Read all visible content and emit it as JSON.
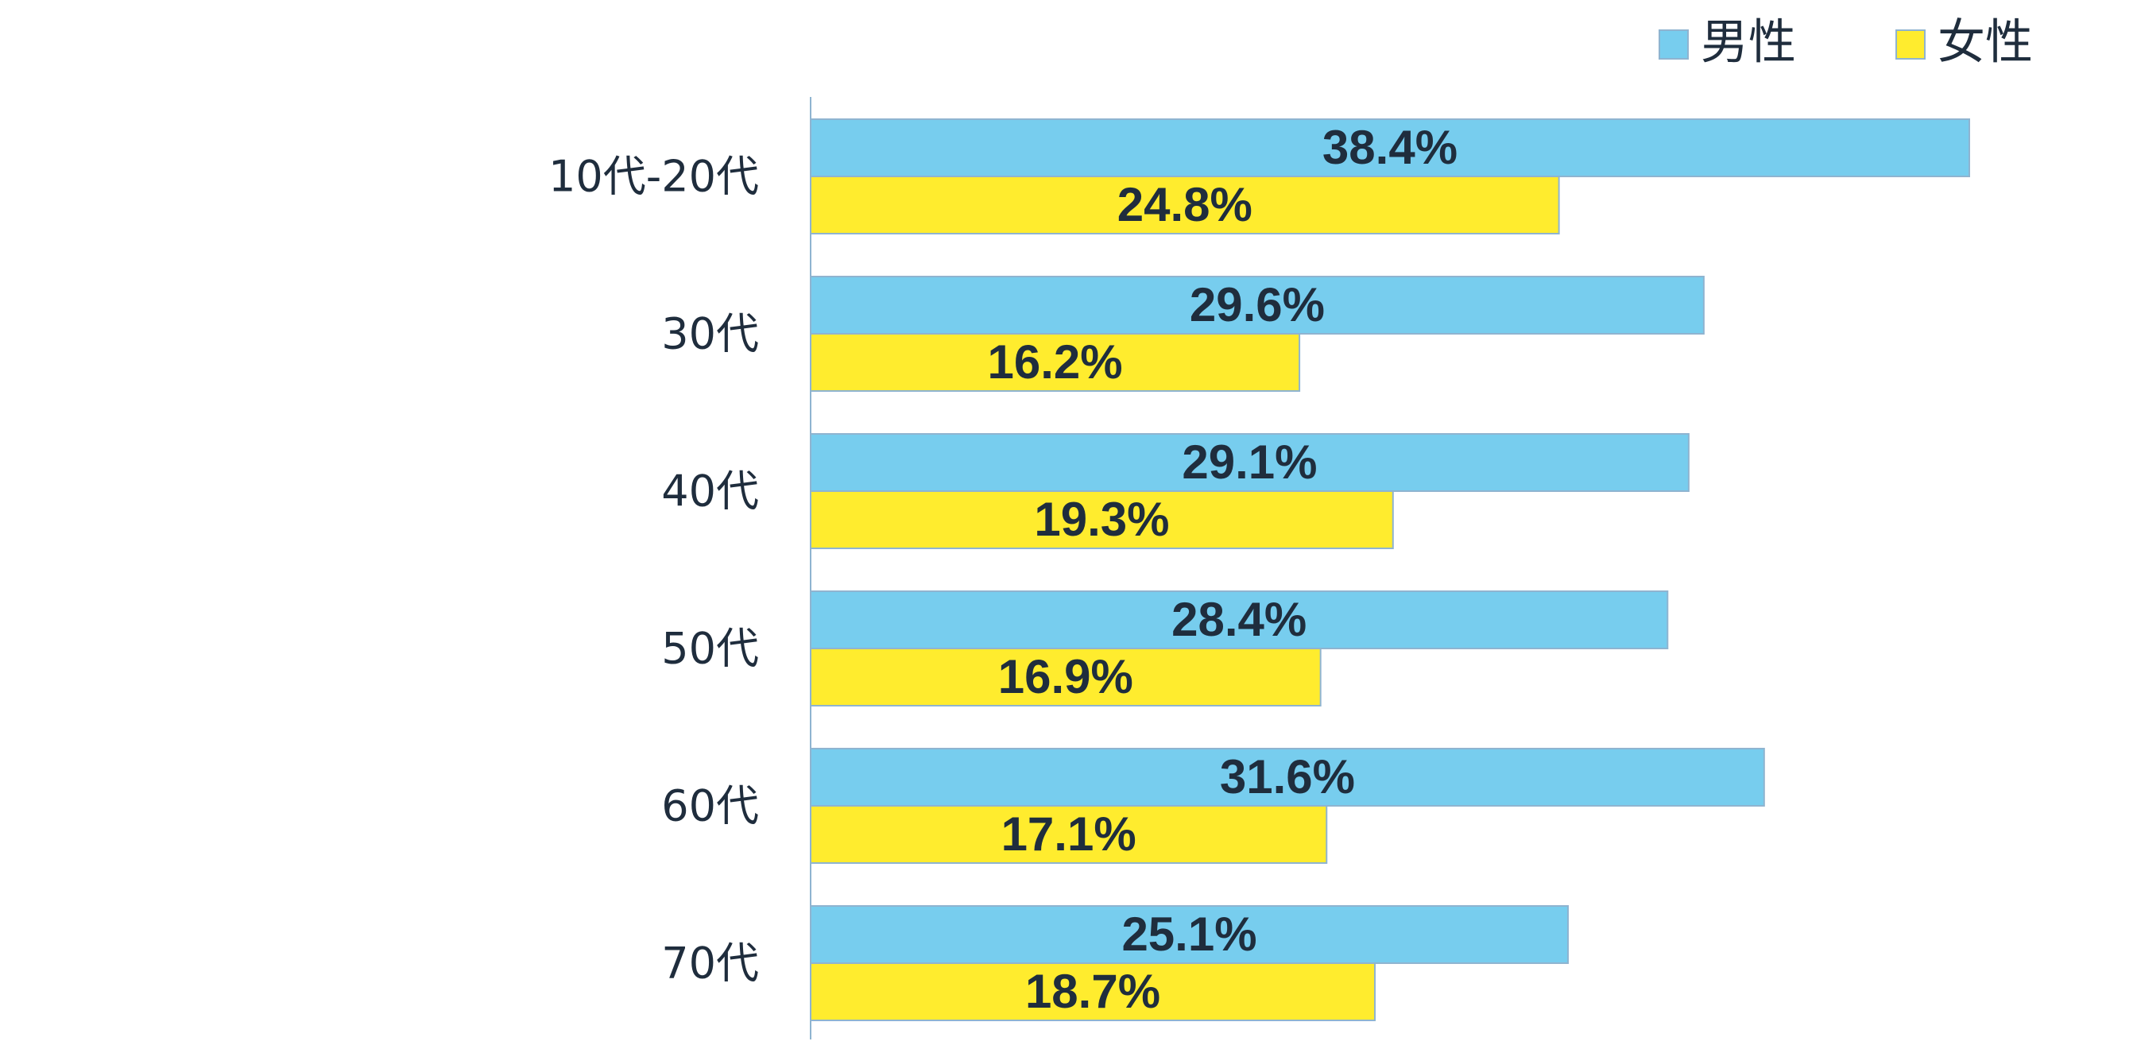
{
  "chart_data": {
    "type": "bar",
    "orientation": "horizontal",
    "categories": [
      "10代-20代",
      "30代",
      "40代",
      "50代",
      "60代",
      "70代"
    ],
    "series": [
      {
        "name": "男性",
        "color": "#77cdee",
        "values": [
          38.4,
          29.6,
          29.1,
          28.4,
          31.6,
          25.1
        ],
        "labels": [
          "38.4%",
          "29.6%",
          "29.1%",
          "28.4%",
          "31.6%",
          "25.1%"
        ]
      },
      {
        "name": "女性",
        "color": "#ffec2e",
        "values": [
          24.8,
          16.2,
          19.3,
          16.9,
          17.1,
          18.7
        ],
        "labels": [
          "24.8%",
          "16.2%",
          "19.3%",
          "16.9%",
          "17.1%",
          "18.7%"
        ]
      }
    ],
    "title": "",
    "xlabel": "",
    "ylabel": "",
    "xlim": [
      0,
      40
    ],
    "grid": false,
    "legend_position": "top-right"
  }
}
